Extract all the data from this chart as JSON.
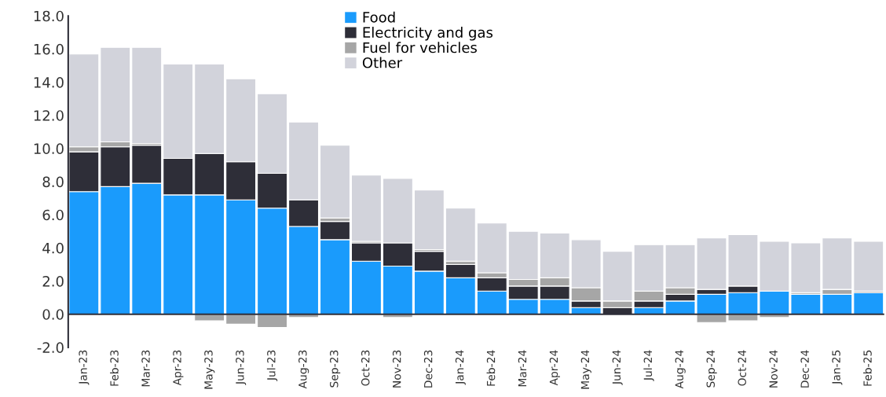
{
  "chart_data": {
    "type": "bar",
    "stacked": true,
    "categories": [
      "Jan-23",
      "Feb-23",
      "Mar-23",
      "Apr-23",
      "May-23",
      "Jun-23",
      "Jul-23",
      "Aug-23",
      "Sep-23",
      "Oct-23",
      "Nov-23",
      "Dec-23",
      "Jan-24",
      "Feb-24",
      "Mar-24",
      "Apr-24",
      "May-24",
      "Jun-24",
      "Jul-24",
      "Aug-24",
      "Sep-24",
      "Oct-24",
      "Nov-24",
      "Dec-24",
      "Jan-25",
      "Feb-25"
    ],
    "series": [
      {
        "name": "Food",
        "color": "#1a9bfc",
        "values": [
          7.4,
          7.7,
          7.9,
          7.2,
          7.2,
          6.9,
          6.4,
          5.3,
          4.5,
          3.2,
          2.9,
          2.6,
          2.2,
          1.4,
          0.9,
          0.9,
          0.4,
          0,
          0.4,
          0.8,
          1.2,
          1.3,
          1.4,
          1.2,
          1.2,
          1.3
        ]
      },
      {
        "name": "Electricity and gas",
        "color": "#2e2e38",
        "values": [
          2.4,
          2.4,
          2.3,
          2.2,
          2.5,
          2.3,
          2.1,
          1.6,
          1.1,
          1.1,
          1.4,
          1.2,
          0.8,
          0.8,
          0.8,
          0.8,
          0.4,
          0.4,
          0.4,
          0.4,
          0.3,
          0.4,
          0,
          0,
          0,
          0
        ]
      },
      {
        "name": "Fuel for vehicles",
        "color": "#a6a6a6",
        "values": [
          0.3,
          0.3,
          0.1,
          0,
          -0.4,
          -0.6,
          -0.8,
          -0.2,
          0.2,
          0.1,
          -0.2,
          0.1,
          0.2,
          0.3,
          0.4,
          0.5,
          0.8,
          0.4,
          0.6,
          0.4,
          -0.5,
          -0.4,
          -0.2,
          0.1,
          0.3,
          0.1
        ]
      },
      {
        "name": "Other",
        "color": "#d2d3db",
        "values": [
          5.6,
          5.7,
          5.8,
          5.7,
          5.4,
          5.0,
          4.8,
          4.7,
          4.4,
          4.0,
          3.9,
          3.6,
          3.2,
          3.0,
          2.9,
          2.7,
          2.9,
          3.0,
          2.8,
          2.6,
          3.1,
          3.1,
          3.0,
          3.0,
          3.1,
          3.0
        ]
      }
    ],
    "ylim": [
      -2,
      18
    ],
    "yticks": [
      {
        "value": -2,
        "label": "-2.0"
      },
      {
        "value": 0,
        "label": "0.0"
      },
      {
        "value": 2,
        "label": "2.0"
      },
      {
        "value": 4,
        "label": "4.0"
      },
      {
        "value": 6,
        "label": "6.0"
      },
      {
        "value": 8,
        "label": "8.0"
      },
      {
        "value": 10,
        "label": "10.0"
      },
      {
        "value": 12,
        "label": "12.0"
      },
      {
        "value": 14,
        "label": "14.0"
      },
      {
        "value": 16,
        "label": "16.0"
      },
      {
        "value": 18,
        "label": "18.0"
      }
    ],
    "ref_lines": [
      {
        "axis": "y",
        "value": 0,
        "color": "#2e2e38"
      }
    ],
    "legend": "top"
  }
}
